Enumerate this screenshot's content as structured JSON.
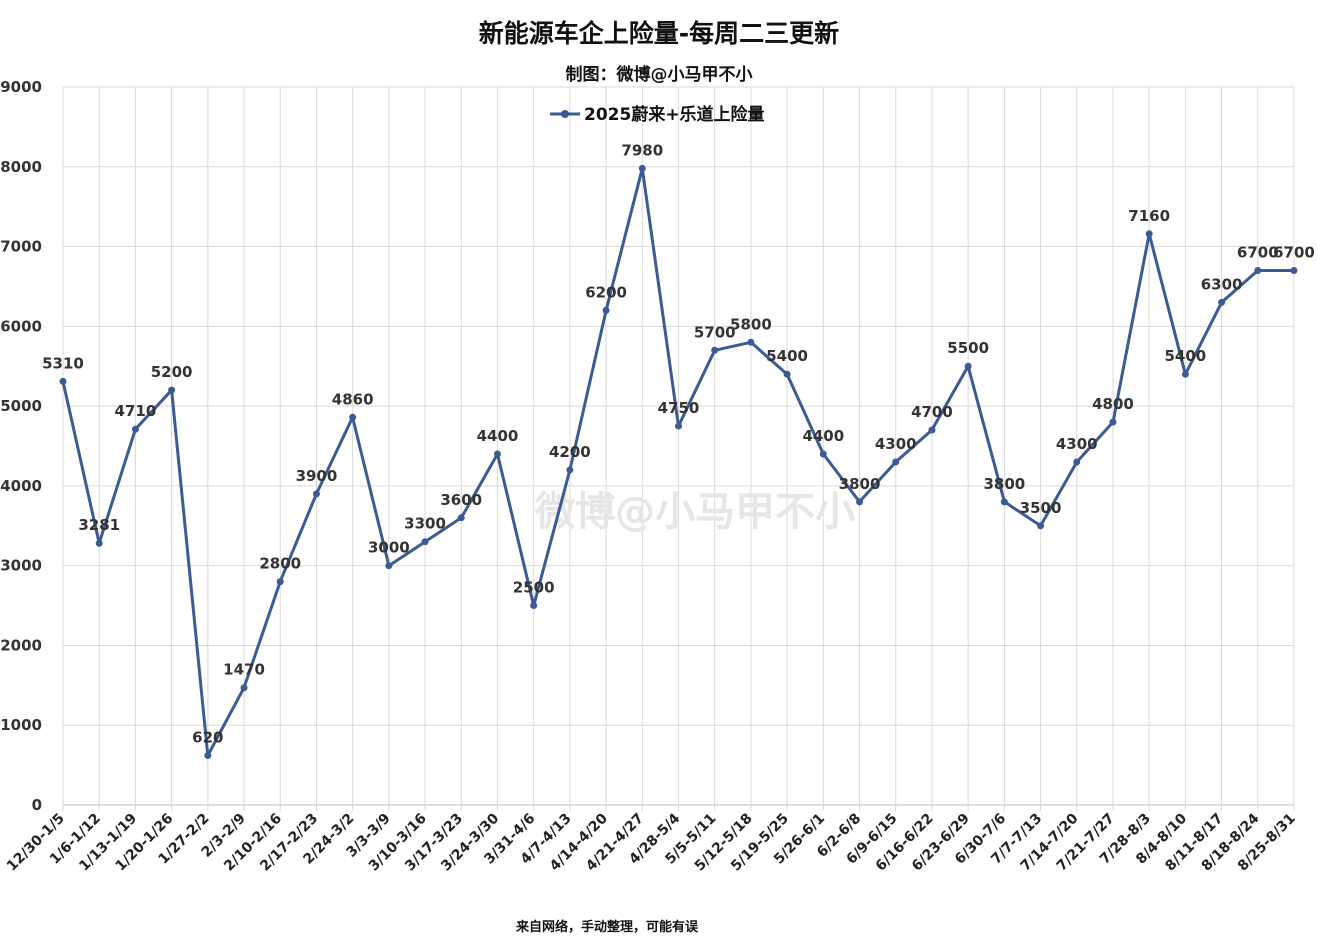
{
  "chart_data": {
    "type": "line",
    "title": "新能源车企上险量-每周二三更新",
    "subtitle": "制图：微博@小马甲不小",
    "footer": "来自网络，手动整理，可能有误",
    "watermark": "微博@小马甲不小",
    "ylim": [
      0,
      9000
    ],
    "yticks": [
      0,
      1000,
      2000,
      3000,
      4000,
      5000,
      6000,
      7000,
      8000,
      9000
    ],
    "grid": true,
    "legend_position": "top",
    "categories": [
      "12/30-1/5",
      "1/6-1/12",
      "1/13-1/19",
      "1/20-1/26",
      "1/27-2/2",
      "2/3-2/9",
      "2/10-2/16",
      "2/17-2/23",
      "2/24-3/2",
      "3/3-3/9",
      "3/10-3/16",
      "3/17-3/23",
      "3/24-3/30",
      "3/31-4/6",
      "4/7-4/13",
      "4/14-4/20",
      "4/21-4/27",
      "4/28-5/4",
      "5/5-5/11",
      "5/12-5/18",
      "5/19-5/25",
      "5/26-6/1",
      "6/2-6/8",
      "6/9-6/15",
      "6/16-6/22",
      "6/23-6/29",
      "6/30-7/6",
      "7/7-7/13",
      "7/14-7/20",
      "7/21-7/27",
      "7/28-8/3",
      "8/4-8/10",
      "8/11-8/17",
      "8/18-8/24",
      "8/25-8/31"
    ],
    "series": [
      {
        "name": "2025蔚来+乐道上险量",
        "color": "#3b5b94",
        "values": [
          5310,
          3281,
          4710,
          5200,
          620,
          1470,
          2800,
          3900,
          4860,
          3000,
          3300,
          3600,
          4400,
          2500,
          4200,
          6200,
          7980,
          4750,
          5700,
          5800,
          5400,
          4400,
          3800,
          4300,
          4700,
          5500,
          3800,
          3500,
          4300,
          4800,
          7160,
          5400,
          6300,
          6700,
          6700
        ]
      }
    ]
  }
}
